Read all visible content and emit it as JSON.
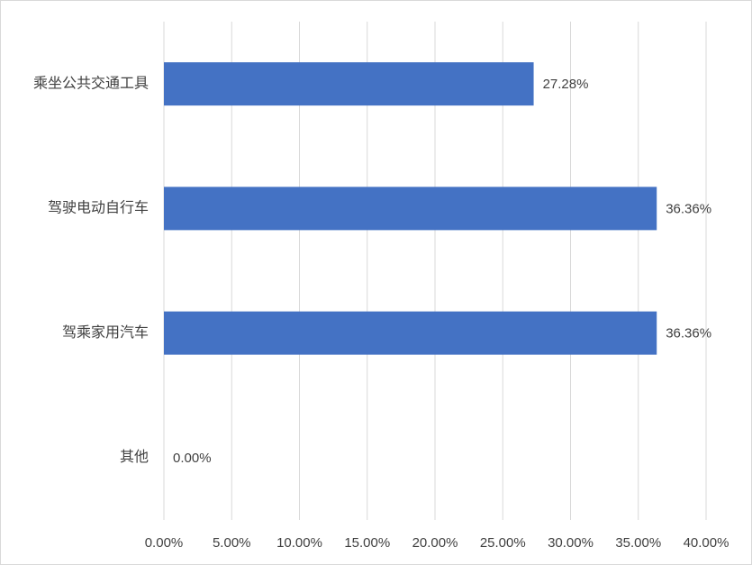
{
  "chart_data": {
    "type": "bar",
    "orientation": "horizontal",
    "categories": [
      "乘坐公共交通工具",
      "驾驶电动自行车",
      "驾乘家用汽车",
      "其他"
    ],
    "values": [
      27.28,
      36.36,
      36.36,
      0
    ],
    "value_labels": [
      "27.28%",
      "36.36%",
      "36.36%",
      "0.00%"
    ],
    "color": "#4472c4",
    "xlim": [
      0,
      40
    ],
    "xticks": [
      {
        "value": 0,
        "label": "0.00%"
      },
      {
        "value": 5,
        "label": "5.00%"
      },
      {
        "value": 10,
        "label": "10.00%"
      },
      {
        "value": 15,
        "label": "15.00%"
      },
      {
        "value": 20,
        "label": "20.00%"
      },
      {
        "value": 25,
        "label": "25.00%"
      },
      {
        "value": 30,
        "label": "30.00%"
      },
      {
        "value": 35,
        "label": "35.00%"
      },
      {
        "value": 40,
        "label": "40.00%"
      }
    ],
    "grid": true
  }
}
